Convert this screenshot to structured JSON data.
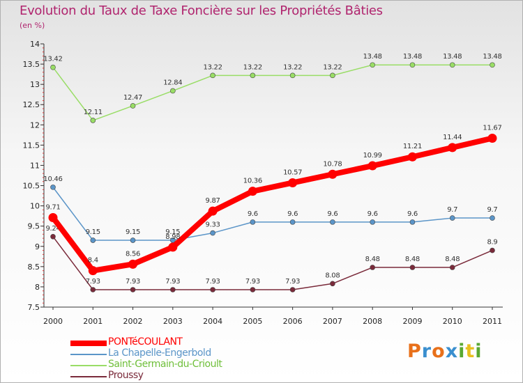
{
  "title": "Evolution du Taux de Taxe Foncière sur les Propriétés Bâties",
  "unit_label": "(en %)",
  "logo": {
    "text": "Proxiti",
    "letters": [
      "P",
      "r",
      "o",
      "x",
      "i",
      "t",
      "i"
    ],
    "colors": [
      "#e8701a",
      "#3a8fcf",
      "#e8701a",
      "#3a8fcf",
      "#5aa832",
      "#e8c020",
      "#5aa832"
    ]
  },
  "chart_data": {
    "type": "line",
    "x": [
      "2000",
      "2001",
      "2002",
      "2003",
      "2004",
      "2005",
      "2006",
      "2007",
      "2008",
      "2009",
      "2010",
      "2011"
    ],
    "ylim": [
      7.5,
      14
    ],
    "yticks": [
      "7.5",
      "8",
      "8.5",
      "9",
      "9.5",
      "10",
      "10.5",
      "11",
      "11.5",
      "12",
      "12.5",
      "13",
      "13.5",
      "14"
    ],
    "grid": false,
    "legend_position": "bottom-left",
    "series": [
      {
        "name": "PONTéCOULANT",
        "color": "#ff0000",
        "values": [
          9.71,
          8.4,
          8.56,
          8.98,
          9.87,
          10.36,
          10.57,
          10.78,
          10.99,
          11.21,
          11.44,
          11.67
        ],
        "labels": [
          "9.71",
          "8.4",
          "8.56",
          "8.98",
          "9.87",
          "10.36",
          "10.57",
          "10.78",
          "10.99",
          "11.21",
          "11.44",
          "11.67"
        ]
      },
      {
        "name": "La Chapelle-Engerbold",
        "color": "#5b95c8",
        "values": [
          10.46,
          9.15,
          9.15,
          9.15,
          9.33,
          9.6,
          9.6,
          9.6,
          9.6,
          9.6,
          9.7,
          9.7
        ],
        "labels": [
          "10.46",
          "9.15",
          "9.15",
          "9.15",
          "9.33",
          "9.6",
          "9.6",
          "9.6",
          "9.6",
          "9.6",
          "9.7",
          "9.7"
        ]
      },
      {
        "name": "Saint-Germain-du-Crioult",
        "color": "#99dd66",
        "values": [
          13.42,
          12.11,
          12.47,
          12.84,
          13.22,
          13.22,
          13.22,
          13.22,
          13.48,
          13.48,
          13.48,
          13.48
        ],
        "labels": [
          "13.42",
          "12.11",
          "12.47",
          "12.84",
          "13.22",
          "13.22",
          "13.22",
          "13.22",
          "13.48",
          "13.48",
          "13.48",
          "13.48"
        ]
      },
      {
        "name": "Proussy",
        "color": "#7a2a3a",
        "values": [
          9.24,
          7.93,
          7.93,
          7.93,
          7.93,
          7.93,
          7.93,
          8.08,
          8.48,
          8.48,
          8.48,
          8.9
        ],
        "labels": [
          "9.24",
          "7.93",
          "7.93",
          "7.93",
          "7.93",
          "7.93",
          "7.93",
          "8.08",
          "8.48",
          "8.48",
          "8.48",
          "8.9"
        ]
      }
    ]
  }
}
